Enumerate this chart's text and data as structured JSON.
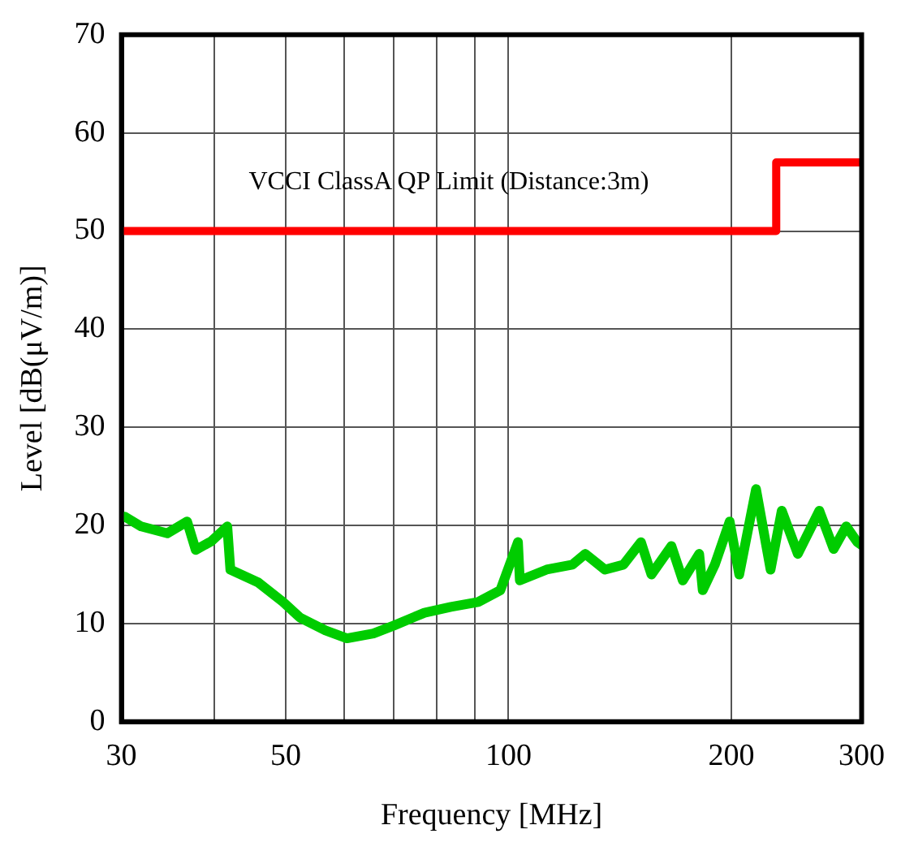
{
  "chart_data": {
    "type": "line",
    "xlabel": "Frequency [MHz]",
    "ylabel": "Level [dB(μV/m)]",
    "log": "x",
    "xlim": [
      30,
      300
    ],
    "xticks": [
      30,
      {
        "value": 40,
        "label": null
      },
      50,
      {
        "value": 60,
        "label": null
      },
      {
        "value": 70,
        "label": null
      },
      {
        "value": 80,
        "label": null
      },
      {
        "value": 90,
        "label": null
      },
      100,
      200,
      300
    ],
    "ylim": [
      0,
      70
    ],
    "yticks": [
      0,
      10,
      20,
      30,
      40,
      50,
      60,
      70
    ],
    "grid": true,
    "legend": false,
    "marker": "none",
    "line_style": "solid",
    "series": [
      {
        "color": "#00cc00",
        "x": [
          30.3,
          31.9,
          34.6,
          36.8,
          37.8,
          39.7,
          41.7,
          42.1,
          45.9,
          49.6,
          52.3,
          56.6,
          60.5,
          65.7,
          70,
          77,
          83.6,
          91,
          97.5,
          103,
          103.6,
          112.6,
          122,
          127,
          135,
          143,
          151,
          156,
          166,
          172,
          181,
          183,
          190,
          199,
          205,
          216,
          226,
          234,
          246,
          263,
          275,
          286,
          296,
          300
        ],
        "values": [
          20.9,
          19.9,
          19.2,
          20.4,
          17.5,
          18.4,
          19.9,
          15.5,
          14.2,
          12.2,
          10.6,
          9.3,
          8.5,
          9,
          9.8,
          11.1,
          11.7,
          12.2,
          13.4,
          18.3,
          14.4,
          15.5,
          16,
          17.1,
          15.5,
          16,
          18.3,
          15,
          17.9,
          14.4,
          17.1,
          13.4,
          16,
          20.4,
          15,
          23.7,
          15.5,
          21.5,
          17.1,
          21.5,
          17.6,
          19.9,
          18.3,
          18
        ]
      },
      {
        "type": "step",
        "name": "VCCI ClassA QP Limit (Distance:3m)",
        "color": "#ff0000",
        "x": [
          30,
          230,
          300
        ],
        "values": [
          50,
          57,
          57
        ]
      }
    ]
  }
}
